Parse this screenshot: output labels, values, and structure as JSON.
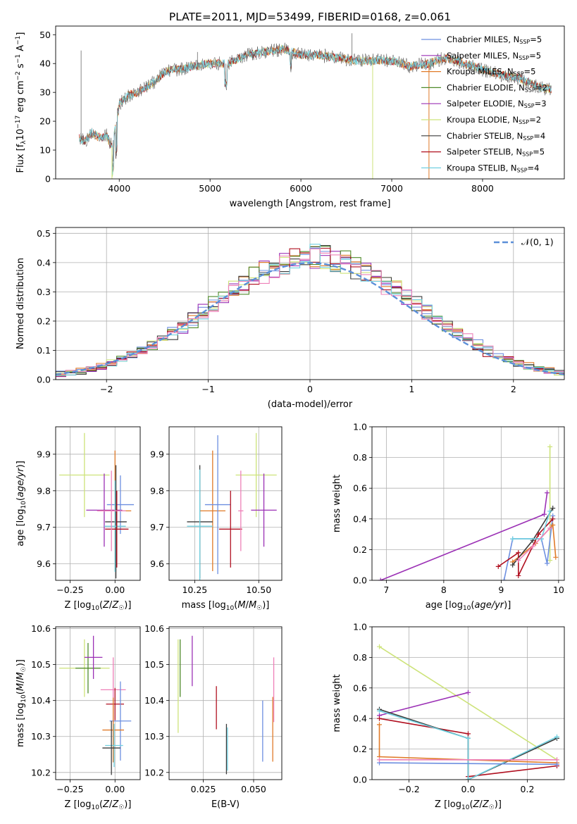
{
  "figure_title": "PLATE=2011, MJD=53499, FIBERID=0168, z=0.061",
  "colors": {
    "Chabrier MILES": "#6d8fe0",
    "Salpeter MILES": "#9b30b5",
    "Kroupa MILES": "#e07a28",
    "Chabrier ELODIE": "#4f8a2a",
    "Salpeter ELODIE": "#9b30b5",
    "Kroupa ELODIE": "#cde37a",
    "Chabrier STELIB": "#3c3c3c",
    "Salpeter STELIB": "#b01020",
    "Kroupa STELIB": "#70d0e0",
    "gauss": "#5b8fd8",
    "pink": "#ee80b8"
  },
  "chart_data": [
    {
      "id": "spectrum",
      "type": "line",
      "title": "PLATE=2011, MJD=53499, FIBERID=0168, z=0.061",
      "xlabel": "wavelength [Angstrom, rest frame]",
      "ylabel": "Flux [f_λ 10^-17 erg cm^-2 s^-1 A^-1]",
      "xlim": [
        3300,
        8900
      ],
      "ylim": [
        0,
        53
      ],
      "xticks": [
        "4000",
        "5000",
        "6000",
        "7000",
        "8000"
      ],
      "yticks": [
        "0",
        "10",
        "20",
        "30",
        "40",
        "50"
      ],
      "grid": false,
      "legend_position": "top-right",
      "legend": [
        {
          "label": "Chabrier MILES, N",
          "sub": "SSP",
          "tail": "=5"
        },
        {
          "label": "Salpeter MILES, N",
          "sub": "SSP",
          "tail": "=5"
        },
        {
          "label": "Kroupa MILES, N",
          "sub": "SSP",
          "tail": "=5"
        },
        {
          "label": "Chabrier ELODIE, N",
          "sub": "SSP",
          "tail": "=2"
        },
        {
          "label": "Salpeter ELODIE, N",
          "sub": "SSP",
          "tail": "=3"
        },
        {
          "label": "Kroupa ELODIE, N",
          "sub": "SSP",
          "tail": "=2"
        },
        {
          "label": "Chabrier STELIB, N",
          "sub": "SSP",
          "tail": "=4"
        },
        {
          "label": "Salpeter STELIB, N",
          "sub": "SSP",
          "tail": "=5"
        },
        {
          "label": "Kroupa STELIB, N",
          "sub": "SSP",
          "tail": "=4"
        }
      ],
      "continuum": [
        [
          3560,
          14
        ],
        [
          3620,
          13
        ],
        [
          3700,
          16
        ],
        [
          3800,
          14
        ],
        [
          3860,
          15
        ],
        [
          3920,
          11
        ],
        [
          3960,
          18
        ],
        [
          4000,
          26
        ],
        [
          4100,
          29
        ],
        [
          4200,
          30
        ],
        [
          4300,
          32
        ],
        [
          4400,
          34
        ],
        [
          4500,
          37
        ],
        [
          4600,
          38
        ],
        [
          4700,
          38
        ],
        [
          4800,
          39
        ],
        [
          5000,
          40
        ],
        [
          5200,
          40
        ],
        [
          5400,
          43
        ],
        [
          5600,
          44
        ],
        [
          5800,
          45
        ],
        [
          6000,
          43
        ],
        [
          6200,
          43
        ],
        [
          6400,
          42
        ],
        [
          6600,
          41
        ],
        [
          6800,
          41
        ],
        [
          7000,
          41
        ],
        [
          7200,
          39
        ],
        [
          7400,
          40
        ],
        [
          7600,
          42
        ],
        [
          7800,
          40
        ],
        [
          8000,
          38
        ],
        [
          8200,
          36
        ],
        [
          8400,
          35
        ],
        [
          8600,
          32
        ],
        [
          8750,
          31
        ]
      ],
      "features": [
        {
          "x": 3580,
          "y": 44.5
        },
        {
          "x": 3934,
          "y": 6
        },
        {
          "x": 3969,
          "y": 8
        },
        {
          "x": 4861,
          "y": 44
        },
        {
          "x": 5175,
          "y": 34
        },
        {
          "x": 5890,
          "y": 37
        },
        {
          "x": 6563,
          "y": 50.5
        },
        {
          "x": 8500,
          "y": 33
        }
      ],
      "drop_lines": [
        {
          "x": 3920,
          "series": "Kroupa ELODIE"
        },
        {
          "x": 6790,
          "series": "Kroupa ELODIE"
        },
        {
          "x": 7410,
          "series": "Kroupa MILES"
        }
      ]
    },
    {
      "id": "residual_hist",
      "type": "histogram",
      "xlabel": "(data-model)/error",
      "ylabel": "Normed distribution",
      "xlim": [
        -2.5,
        2.5
      ],
      "ylim": [
        0,
        0.52
      ],
      "xticks": [
        "−2",
        "−1",
        "0",
        "1",
        "2"
      ],
      "yticks": [
        "0.0",
        "0.1",
        "0.2",
        "0.3",
        "0.4",
        "0.5"
      ],
      "grid": true,
      "legend_position": "top-right",
      "gauss_label": "𝒩(0, 1)",
      "bin_width": 0.1,
      "bin_start": -2.5,
      "series": [
        "Chabrier MILES",
        "Salpeter MILES",
        "Kroupa MILES",
        "Chabrier ELODIE",
        "Kroupa ELODIE",
        "Chabrier STELIB",
        "Salpeter STELIB",
        "Kroupa STELIB",
        "pink"
      ]
    },
    {
      "id": "age_vs_Z",
      "type": "scatter",
      "xlabel": "Z [log10(Z/Z☉)]",
      "ylabel": "age [log10(age/yr)]",
      "xlim": [
        -0.33,
        0.14
      ],
      "ylim": [
        9.555,
        9.975
      ],
      "xticks": [
        "−0.25",
        "0.00"
      ],
      "yticks": [
        "9.6",
        "9.7",
        "9.8",
        "9.9"
      ],
      "grid": true,
      "points": [
        {
          "x": -0.17,
          "y": 9.843,
          "ex": 0.14,
          "ey": 0.115,
          "s": "Kroupa ELODIE"
        },
        {
          "x": -0.06,
          "y": 9.747,
          "ex": 0.1,
          "ey": 0.1,
          "s": "Salpeter ELODIE"
        },
        {
          "x": 0.0,
          "y": 9.745,
          "ex": 0.09,
          "ey": 0.165,
          "s": "Kroupa MILES"
        },
        {
          "x": 0.03,
          "y": 9.762,
          "ex": 0.075,
          "ey": 0.08,
          "s": "Chabrier MILES"
        },
        {
          "x": 0.005,
          "y": 9.715,
          "ex": 0.06,
          "ey": 0.155,
          "s": "Chabrier STELIB"
        },
        {
          "x": 0.0,
          "y": 9.703,
          "ex": 0.06,
          "ey": 0.125,
          "s": "Kroupa STELIB"
        },
        {
          "x": 0.01,
          "y": 9.695,
          "ex": 0.065,
          "ey": 0.105,
          "s": "Salpeter STELIB"
        },
        {
          "x": -0.02,
          "y": 9.745,
          "ex": 0.08,
          "ey": 0.11,
          "s": "pink"
        }
      ]
    },
    {
      "id": "age_vs_mass",
      "type": "scatter",
      "xlabel": "mass [log10(M/M☉)]",
      "ylabel": "",
      "xlim": [
        10.15,
        10.59
      ],
      "ylim": [
        9.555,
        9.975
      ],
      "xticks": [
        "10.25",
        "10.50"
      ],
      "yticks": [
        "9.6",
        "9.7",
        "9.8",
        "9.9"
      ],
      "grid": true,
      "points": [
        {
          "x": 10.49,
          "y": 9.843,
          "ex": 0.08,
          "ey": 0.115,
          "s": "Kroupa ELODIE"
        },
        {
          "x": 10.52,
          "y": 9.747,
          "ex": 0.05,
          "ey": 0.1,
          "s": "Salpeter ELODIE"
        },
        {
          "x": 10.32,
          "y": 9.745,
          "ex": 0.05,
          "ey": 0.165,
          "s": "Kroupa MILES"
        },
        {
          "x": 10.34,
          "y": 9.762,
          "ex": 0.05,
          "ey": 0.19,
          "s": "Chabrier MILES"
        },
        {
          "x": 10.27,
          "y": 9.715,
          "ex": 0.05,
          "ey": 0.155,
          "s": "Chabrier STELIB"
        },
        {
          "x": 10.27,
          "y": 9.703,
          "ex": 0.05,
          "ey": 0.155,
          "s": "Kroupa STELIB"
        },
        {
          "x": 10.39,
          "y": 9.695,
          "ex": 0.045,
          "ey": 0.105,
          "s": "Salpeter STELIB"
        },
        {
          "x": 10.43,
          "y": 9.745,
          "ex": 0.01,
          "ey": 0.11,
          "s": "pink"
        }
      ]
    },
    {
      "id": "massweight_vs_age",
      "type": "line",
      "xlabel": "age [log10(age/yr)]",
      "ylabel": "mass weight",
      "xlim": [
        6.75,
        10.1
      ],
      "ylim": [
        0,
        1.0
      ],
      "xticks": [
        "7",
        "8",
        "9",
        "10"
      ],
      "yticks": [
        "0.0",
        "0.2",
        "0.4",
        "0.6",
        "0.8",
        "1.0"
      ],
      "grid": true,
      "series": [
        {
          "s": "Salpeter ELODIE",
          "pts": [
            [
              6.9,
              0.0
            ],
            [
              9.75,
              0.43
            ],
            [
              9.8,
              0.57
            ]
          ]
        },
        {
          "s": "Kroupa ELODIE",
          "pts": [
            [
              9.85,
              0.13
            ],
            [
              9.85,
              0.87
            ]
          ]
        },
        {
          "s": "Chabrier MILES",
          "pts": [
            [
              9.05,
              0.0
            ],
            [
              9.2,
              0.27
            ],
            [
              9.7,
              0.27
            ],
            [
              9.8,
              0.11
            ],
            [
              9.9,
              0.42
            ]
          ]
        },
        {
          "s": "Kroupa MILES",
          "pts": [
            [
              9.2,
              0.12
            ],
            [
              9.6,
              0.24
            ],
            [
              9.9,
              0.36
            ],
            [
              9.95,
              0.15
            ]
          ]
        },
        {
          "s": "Chabrier STELIB",
          "pts": [
            [
              9.2,
              0.1
            ],
            [
              9.55,
              0.26
            ],
            [
              9.9,
              0.47
            ]
          ]
        },
        {
          "s": "Salpeter STELIB",
          "pts": [
            [
              8.95,
              0.09
            ],
            [
              9.3,
              0.18
            ],
            [
              9.3,
              0.03
            ],
            [
              9.65,
              0.3
            ],
            [
              9.9,
              0.4
            ]
          ]
        },
        {
          "s": "Kroupa STELIB",
          "pts": [
            [
              9.2,
              0.27
            ],
            [
              9.7,
              0.27
            ],
            [
              9.85,
              0.45
            ]
          ]
        },
        {
          "s": "pink",
          "pts": [
            [
              9.3,
              0.13
            ],
            [
              9.55,
              0.22
            ],
            [
              9.85,
              0.34
            ]
          ]
        }
      ]
    },
    {
      "id": "mass_vs_Z",
      "type": "scatter",
      "xlabel": "Z [log10(Z/Z☉)]",
      "ylabel": "mass [log10(M/M☉)]",
      "xlim": [
        -0.33,
        0.14
      ],
      "ylim": [
        10.18,
        10.605
      ],
      "xticks": [
        "−0.25",
        "0.00"
      ],
      "yticks": [
        "10.2",
        "10.3",
        "10.4",
        "10.5",
        "10.6"
      ],
      "grid": true,
      "points": [
        {
          "x": -0.17,
          "y": 10.49,
          "ex": 0.14,
          "ey": 0.08,
          "s": "Kroupa ELODIE"
        },
        {
          "x": -0.15,
          "y": 10.49,
          "ex": 0.07,
          "ey": 0.07,
          "s": "Chabrier ELODIE"
        },
        {
          "x": -0.12,
          "y": 10.52,
          "ex": 0.05,
          "ey": 0.06,
          "s": "Salpeter ELODIE"
        },
        {
          "x": -0.01,
          "y": 10.43,
          "ex": 0.07,
          "ey": 0.09,
          "s": "pink"
        },
        {
          "x": 0.0,
          "y": 10.39,
          "ex": 0.05,
          "ey": 0.045,
          "s": "Salpeter STELIB"
        },
        {
          "x": 0.03,
          "y": 10.343,
          "ex": 0.06,
          "ey": 0.11,
          "s": "Chabrier MILES"
        },
        {
          "x": -0.01,
          "y": 10.318,
          "ex": 0.06,
          "ey": 0.09,
          "s": "Kroupa MILES"
        },
        {
          "x": -0.005,
          "y": 10.275,
          "ex": 0.05,
          "ey": 0.06,
          "s": "Kroupa STELIB"
        },
        {
          "x": -0.02,
          "y": 10.268,
          "ex": 0.05,
          "ey": 0.075,
          "s": "Chabrier STELIB"
        }
      ]
    },
    {
      "id": "mass_vs_ebv",
      "type": "scatter",
      "xlabel": "E(B-V)",
      "ylabel": "",
      "xlim": [
        0.008,
        0.064
      ],
      "ylim": [
        10.18,
        10.605
      ],
      "xticks": [
        "0.025",
        "0.050"
      ],
      "yticks": [
        "10.2",
        "10.3",
        "10.4",
        "10.5",
        "10.6"
      ],
      "grid": true,
      "points": [
        {
          "x": 0.0125,
          "y": 10.44,
          "ey": 0.13,
          "s": "Kroupa ELODIE"
        },
        {
          "x": 0.0135,
          "y": 10.49,
          "ey": 0.08,
          "s": "Chabrier ELODIE"
        },
        {
          "x": 0.0195,
          "y": 10.51,
          "ey": 0.07,
          "s": "Salpeter ELODIE"
        },
        {
          "x": 0.0315,
          "y": 10.38,
          "ey": 0.06,
          "s": "Salpeter STELIB"
        },
        {
          "x": 0.0365,
          "y": 10.265,
          "ey": 0.07,
          "s": "Chabrier STELIB"
        },
        {
          "x": 0.037,
          "y": 10.265,
          "ey": 0.06,
          "s": "Kroupa STELIB"
        },
        {
          "x": 0.0545,
          "y": 10.315,
          "ey": 0.085,
          "s": "Chabrier MILES"
        },
        {
          "x": 0.0595,
          "y": 10.32,
          "ey": 0.09,
          "s": "Kroupa MILES"
        },
        {
          "x": 0.06,
          "y": 10.43,
          "ey": 0.09,
          "s": "pink"
        }
      ]
    },
    {
      "id": "massweight_vs_Z",
      "type": "line",
      "xlabel": "Z [log10(Z/Z☉)]",
      "ylabel": "mass weight",
      "xlim": [
        -0.325,
        0.325
      ],
      "ylim": [
        0,
        1.0
      ],
      "xticks": [
        "−0.2",
        "0.0",
        "0.2"
      ],
      "yticks": [
        "0.0",
        "0.2",
        "0.4",
        "0.6",
        "0.8",
        "1.0"
      ],
      "grid": true,
      "series": [
        {
          "s": "Kroupa ELODIE",
          "pts": [
            [
              -0.3,
              0.87
            ],
            [
              0.3,
              0.13
            ]
          ]
        },
        {
          "s": "Salpeter ELODIE",
          "pts": [
            [
              -0.3,
              0.42
            ],
            [
              0.0,
              0.57
            ]
          ]
        },
        {
          "s": "Salpeter STELIB",
          "pts": [
            [
              -0.3,
              0.4
            ],
            [
              0.0,
              0.3
            ],
            [
              0.0,
              0.02
            ],
            [
              0.3,
              0.09
            ]
          ]
        },
        {
          "s": "Chabrier STELIB",
          "pts": [
            [
              -0.3,
              0.46
            ],
            [
              0.0,
              0.27
            ],
            [
              0.0,
              0.0
            ],
            [
              0.3,
              0.27
            ]
          ]
        },
        {
          "s": "Kroupa STELIB",
          "pts": [
            [
              -0.3,
              0.45
            ],
            [
              0.0,
              0.27
            ],
            [
              0.0,
              0.0
            ],
            [
              0.3,
              0.28
            ]
          ]
        },
        {
          "s": "Kroupa MILES",
          "pts": [
            [
              -0.3,
              0.36
            ],
            [
              -0.3,
              0.15
            ],
            [
              0.3,
              0.11
            ]
          ]
        },
        {
          "s": "Chabrier MILES",
          "pts": [
            [
              -0.3,
              0.11
            ],
            [
              0.3,
              0.1
            ]
          ]
        },
        {
          "s": "pink",
          "pts": [
            [
              -0.3,
              0.13
            ],
            [
              0.3,
              0.13
            ]
          ]
        }
      ]
    }
  ]
}
